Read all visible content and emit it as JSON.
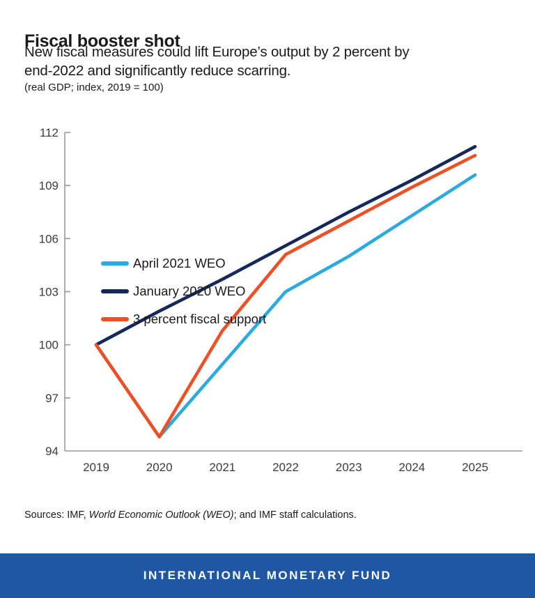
{
  "page": {
    "title": "Fiscal booster shot",
    "subtitle_line1": "New fiscal measures could lift Europe’s output by 2 percent by",
    "subtitle_line2": "end-2022 and significantly reduce scarring.",
    "units_note": "(real GDP; index, 2019 = 100)",
    "sources_prefix": "Sources: IMF, ",
    "sources_italic": "World Economic Outlook (WEO)",
    "sources_suffix": "; and IMF staff calculations.",
    "footer_text": "INTERNATIONAL MONETARY FUND"
  },
  "colors": {
    "april_2021_weo": "#29ABE2",
    "january_2020_weo": "#13295C",
    "fiscal_support": "#F04E23",
    "axis": "#999999",
    "footer_bg": "#1F57A5"
  },
  "chart_data": {
    "type": "line",
    "title": "Fiscal booster shot",
    "subtitle": "New fiscal measures could lift Europe’s output by 2 percent by end-2022 and significantly reduce scarring.",
    "units": "(real GDP; index, 2019 = 100)",
    "categories": [
      2019,
      2020,
      2021,
      2022,
      2023,
      2024,
      2025
    ],
    "series": [
      {
        "name": "April 2021 WEO",
        "color_key": "april_2021_weo",
        "values": [
          100,
          94.8,
          98.9,
          103.0,
          105.0,
          107.3,
          109.6
        ]
      },
      {
        "name": "January 2020 WEO",
        "color_key": "january_2020_weo",
        "values": [
          100,
          101.9,
          103.7,
          105.6,
          107.5,
          109.3,
          111.2
        ]
      },
      {
        "name": "3 percent fiscal support",
        "color_key": "fiscal_support",
        "values": [
          100,
          94.8,
          100.8,
          105.1,
          107.0,
          108.9,
          110.7
        ]
      }
    ],
    "draw_order": [
      1,
      0,
      2
    ],
    "y_ticks": [
      94,
      97,
      100,
      103,
      106,
      109,
      112
    ],
    "ylim": [
      94,
      112
    ],
    "xlabel": "",
    "ylabel": "",
    "grid": false,
    "legend_position": "top-left-inside"
  }
}
